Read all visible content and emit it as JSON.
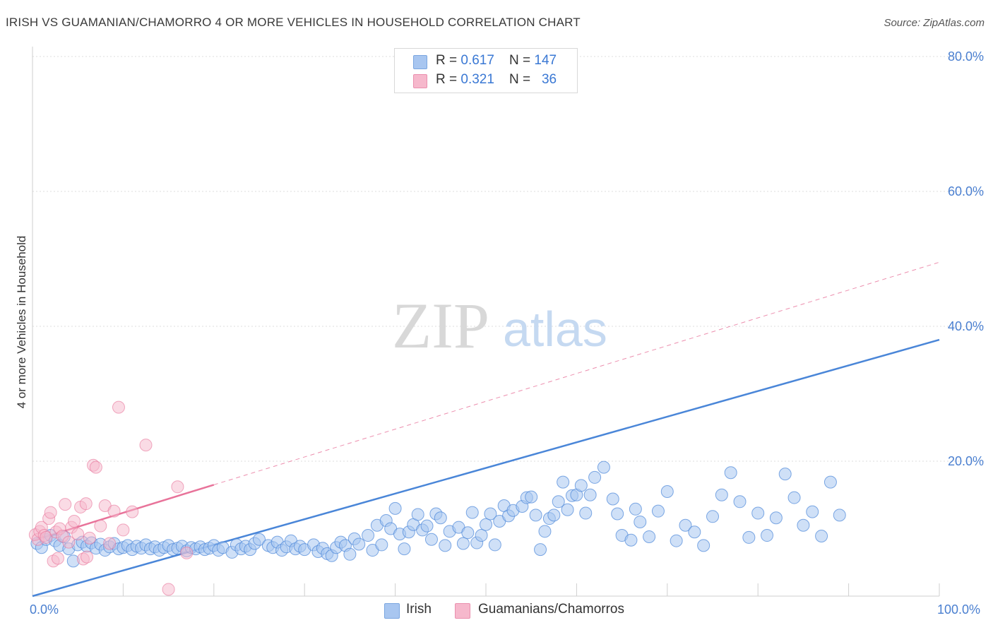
{
  "title": "IRISH VS GUAMANIAN/CHAMORRO 4 OR MORE VEHICLES IN HOUSEHOLD CORRELATION CHART",
  "source": "Source: ZipAtlas.com",
  "watermark": {
    "zip": "ZIP",
    "atlas": "atlas"
  },
  "legend": {
    "rows": [
      {
        "r_label": "R = ",
        "r_value": "0.617",
        "n_label": "N = ",
        "n_value": "147",
        "color": "#a8c6f0"
      },
      {
        "r_label": "R = ",
        "r_value": "0.321",
        "n_label": "N = ",
        "n_value": "36",
        "color": "#f6b8cc"
      }
    ]
  },
  "bottom_legend": {
    "irish": "Irish",
    "guam": "Guamanians/Chamorros"
  },
  "chart_data": {
    "type": "scatter",
    "ylabel": "4 or more Vehicles in Household",
    "xlim": [
      0,
      100
    ],
    "ylim": [
      0,
      80
    ],
    "x_tick_labels": [
      "0.0%",
      "100.0%"
    ],
    "y_tick_labels": [
      "20.0%",
      "40.0%",
      "60.0%",
      "80.0%"
    ],
    "y_ticks": [
      20,
      40,
      60,
      80
    ],
    "colors": {
      "irish": "#4a86d8",
      "irish_fill": "#a8c6f0",
      "guam": "#e8739a",
      "guam_fill": "#f6b8cc"
    },
    "series": [
      {
        "name": "Irish",
        "trend": {
          "x": [
            0,
            100
          ],
          "y": [
            0,
            38
          ]
        },
        "points": [
          [
            0.5,
            7.8
          ],
          [
            1,
            7.2
          ],
          [
            1.5,
            8.4
          ],
          [
            2,
            9.0
          ],
          [
            2.5,
            8.2
          ],
          [
            3,
            7.5
          ],
          [
            3.5,
            8.8
          ],
          [
            4,
            7.0
          ],
          [
            4.5,
            5.2
          ],
          [
            5,
            7.6
          ],
          [
            5.5,
            8.0
          ],
          [
            6,
            7.4
          ],
          [
            6.5,
            7.9
          ],
          [
            7,
            7.1
          ],
          [
            7.5,
            7.7
          ],
          [
            8,
            6.8
          ],
          [
            8.5,
            7.3
          ],
          [
            9,
            7.8
          ],
          [
            9.5,
            7.0
          ],
          [
            10,
            7.2
          ],
          [
            10.5,
            7.5
          ],
          [
            11,
            6.9
          ],
          [
            11.5,
            7.4
          ],
          [
            12,
            7.1
          ],
          [
            12.5,
            7.6
          ],
          [
            13,
            7.0
          ],
          [
            13.5,
            7.3
          ],
          [
            14,
            6.8
          ],
          [
            14.5,
            7.2
          ],
          [
            15,
            7.5
          ],
          [
            15.5,
            6.9
          ],
          [
            16,
            7.1
          ],
          [
            16.5,
            7.4
          ],
          [
            17,
            6.7
          ],
          [
            17.5,
            7.2
          ],
          [
            18,
            7.0
          ],
          [
            18.5,
            7.3
          ],
          [
            19,
            6.9
          ],
          [
            19.5,
            7.1
          ],
          [
            20,
            7.5
          ],
          [
            20.5,
            6.8
          ],
          [
            21,
            7.2
          ],
          [
            22,
            6.5
          ],
          [
            22.5,
            7.6
          ],
          [
            23,
            7.0
          ],
          [
            23.5,
            7.4
          ],
          [
            24,
            6.9
          ],
          [
            24.5,
            7.8
          ],
          [
            25,
            8.4
          ],
          [
            26,
            7.5
          ],
          [
            26.5,
            7.2
          ],
          [
            27,
            8.0
          ],
          [
            27.5,
            6.8
          ],
          [
            28,
            7.3
          ],
          [
            28.5,
            8.2
          ],
          [
            29,
            7.0
          ],
          [
            29.5,
            7.4
          ],
          [
            30,
            6.9
          ],
          [
            31,
            7.6
          ],
          [
            31.5,
            6.6
          ],
          [
            32,
            7.1
          ],
          [
            32.5,
            6.3
          ],
          [
            33,
            6.0
          ],
          [
            33.5,
            7.2
          ],
          [
            34,
            8.0
          ],
          [
            34.5,
            7.5
          ],
          [
            35,
            6.2
          ],
          [
            35.5,
            8.5
          ],
          [
            36,
            7.7
          ],
          [
            37,
            9.0
          ],
          [
            37.5,
            6.8
          ],
          [
            38,
            10.5
          ],
          [
            38.5,
            7.6
          ],
          [
            39,
            11.2
          ],
          [
            39.5,
            10.0
          ],
          [
            40,
            13.0
          ],
          [
            40.5,
            9.2
          ],
          [
            41,
            7.0
          ],
          [
            41.5,
            9.5
          ],
          [
            42,
            10.6
          ],
          [
            42.5,
            12.1
          ],
          [
            43,
            9.8
          ],
          [
            43.5,
            10.4
          ],
          [
            44,
            8.4
          ],
          [
            44.5,
            12.2
          ],
          [
            45,
            11.6
          ],
          [
            45.5,
            7.5
          ],
          [
            46,
            9.6
          ],
          [
            47,
            10.2
          ],
          [
            47.5,
            7.8
          ],
          [
            48,
            9.4
          ],
          [
            48.5,
            12.4
          ],
          [
            49,
            7.9
          ],
          [
            49.5,
            9.0
          ],
          [
            50,
            10.6
          ],
          [
            50.5,
            12.2
          ],
          [
            51,
            7.6
          ],
          [
            51.5,
            11.1
          ],
          [
            52,
            13.4
          ],
          [
            52.5,
            11.9
          ],
          [
            53,
            12.7
          ],
          [
            54,
            13.3
          ],
          [
            54.5,
            14.6
          ],
          [
            55,
            14.7
          ],
          [
            55.5,
            12.0
          ],
          [
            56,
            6.9
          ],
          [
            56.5,
            9.6
          ],
          [
            57,
            11.5
          ],
          [
            57.5,
            12.0
          ],
          [
            58,
            14.0
          ],
          [
            58.5,
            16.9
          ],
          [
            59,
            12.8
          ],
          [
            59.5,
            14.9
          ],
          [
            60,
            15.0
          ],
          [
            60.5,
            16.4
          ],
          [
            61,
            12.3
          ],
          [
            61.5,
            15.0
          ],
          [
            62,
            17.6
          ],
          [
            63,
            19.1
          ],
          [
            64,
            14.4
          ],
          [
            64.5,
            12.2
          ],
          [
            65,
            9.0
          ],
          [
            66,
            8.3
          ],
          [
            66.5,
            12.9
          ],
          [
            67,
            11.0
          ],
          [
            68,
            8.8
          ],
          [
            69,
            12.6
          ],
          [
            70,
            15.5
          ],
          [
            71,
            8.2
          ],
          [
            72,
            10.5
          ],
          [
            73,
            9.5
          ],
          [
            74,
            7.5
          ],
          [
            75,
            11.8
          ],
          [
            76,
            15.0
          ],
          [
            77,
            18.3
          ],
          [
            78,
            14.0
          ],
          [
            79,
            8.7
          ],
          [
            80,
            12.3
          ],
          [
            81,
            9.0
          ],
          [
            82,
            11.6
          ],
          [
            83,
            18.1
          ],
          [
            84,
            14.6
          ],
          [
            85,
            10.5
          ],
          [
            86,
            12.5
          ],
          [
            87,
            8.9
          ],
          [
            88,
            16.9
          ],
          [
            89,
            12.0
          ]
        ]
      },
      {
        "name": "Guamanians/Chamorros",
        "trend": {
          "x": [
            0,
            20
          ],
          "y": [
            8.2,
            16.5
          ],
          "dash_to": [
            100,
            49.5
          ]
        },
        "points": [
          [
            0.3,
            9.1
          ],
          [
            0.6,
            8.4
          ],
          [
            0.8,
            9.6
          ],
          [
            1,
            10.2
          ],
          [
            1.3,
            9.0
          ],
          [
            1.5,
            8.7
          ],
          [
            1.8,
            11.5
          ],
          [
            2,
            12.4
          ],
          [
            2.3,
            5.2
          ],
          [
            2.6,
            9.5
          ],
          [
            2.8,
            5.6
          ],
          [
            3,
            10.0
          ],
          [
            3.3,
            8.9
          ],
          [
            3.6,
            13.6
          ],
          [
            4,
            8.0
          ],
          [
            4.3,
            10.2
          ],
          [
            4.6,
            11.1
          ],
          [
            5,
            9.2
          ],
          [
            5.3,
            13.2
          ],
          [
            5.6,
            5.5
          ],
          [
            5.9,
            13.7
          ],
          [
            6,
            5.8
          ],
          [
            6.3,
            8.6
          ],
          [
            6.7,
            19.4
          ],
          [
            7,
            19.1
          ],
          [
            7.5,
            10.4
          ],
          [
            8,
            13.4
          ],
          [
            8.5,
            7.8
          ],
          [
            9,
            12.6
          ],
          [
            9.5,
            28.0
          ],
          [
            10,
            9.8
          ],
          [
            11,
            12.5
          ],
          [
            12.5,
            22.4
          ],
          [
            15,
            1.0
          ],
          [
            16,
            16.2
          ],
          [
            17,
            6.4
          ]
        ]
      }
    ]
  }
}
